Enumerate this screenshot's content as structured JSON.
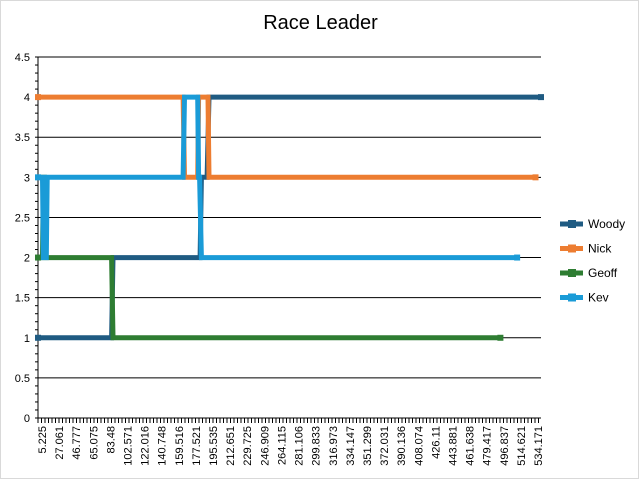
{
  "chart_data": {
    "type": "line",
    "title": "Race Leader",
    "xlabel": "",
    "ylabel": "",
    "ylim": [
      0,
      4.5
    ],
    "yticks": [
      "0",
      "0.5",
      "1",
      "1.5",
      "2",
      "2.5",
      "3",
      "3.5",
      "4",
      "4.5"
    ],
    "xlim": [
      5.225,
      540
    ],
    "xtick_labels": [
      "5.225",
      "27.061",
      "46.777",
      "65.075",
      "83.48",
      "102.571",
      "122.016",
      "140.748",
      "159.516",
      "177.521",
      "195.535",
      "212.651",
      "229.725",
      "246.909",
      "264.115",
      "281.106",
      "299.833",
      "316.973",
      "334.147",
      "351.299",
      "372.031",
      "390.136",
      "408.074",
      "426.11",
      "443.881",
      "461.638",
      "479.417",
      "496.837",
      "514.621",
      "534.171"
    ],
    "grid": true,
    "legend_position": "right",
    "series": [
      {
        "name": "Woody",
        "color": "#1f5b82",
        "points": [
          [
            5.225,
            1
          ],
          [
            83.48,
            1
          ],
          [
            85,
            2
          ],
          [
            177.521,
            2
          ],
          [
            179,
            3
          ],
          [
            185,
            3
          ],
          [
            187,
            4
          ],
          [
            540,
            4
          ]
        ]
      },
      {
        "name": "Nick",
        "color": "#ed7d31",
        "points": [
          [
            5.225,
            4
          ],
          [
            159.516,
            4
          ],
          [
            161,
            3
          ],
          [
            175,
            3
          ],
          [
            176,
            4
          ],
          [
            186,
            4
          ],
          [
            187,
            3
          ],
          [
            534.171,
            3
          ]
        ]
      },
      {
        "name": "Geoff",
        "color": "#2e7d32",
        "points": [
          [
            5.225,
            2
          ],
          [
            10,
            2
          ],
          [
            11,
            3
          ],
          [
            12,
            3
          ],
          [
            13,
            2
          ],
          [
            83.48,
            2
          ],
          [
            85,
            1
          ],
          [
            496.837,
            1
          ]
        ]
      },
      {
        "name": "Kev",
        "color": "#1a9bd7",
        "points": [
          [
            5.225,
            3
          ],
          [
            10,
            3
          ],
          [
            11,
            2
          ],
          [
            14,
            2
          ],
          [
            15,
            3
          ],
          [
            159.516,
            3
          ],
          [
            161,
            4
          ],
          [
            175,
            4
          ],
          [
            176,
            3
          ],
          [
            177,
            3
          ],
          [
            179,
            2
          ],
          [
            514.621,
            2
          ]
        ]
      }
    ]
  }
}
